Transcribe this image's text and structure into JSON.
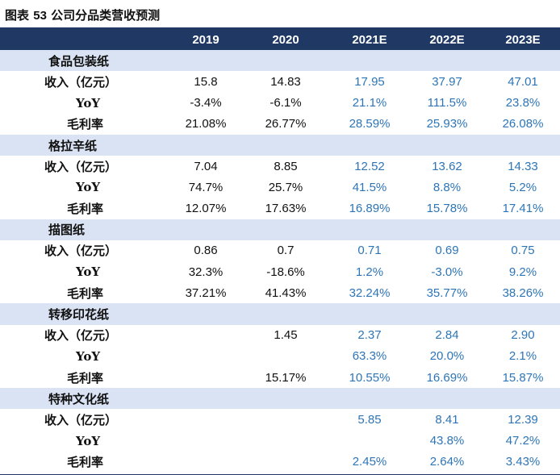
{
  "title": {
    "prefix": "图表",
    "number": "53",
    "text": "公司分品类营收预测"
  },
  "header": {
    "years": [
      "2019",
      "2020",
      "2021E",
      "2022E",
      "2023E"
    ]
  },
  "sections": [
    {
      "name": "食品包装纸",
      "rows": [
        {
          "label": "收入（亿元）",
          "values": [
            "15.8",
            "14.83",
            "17.95",
            "37.97",
            "47.01"
          ]
        },
        {
          "label": "YoY",
          "values": [
            "-3.4%",
            "-6.1%",
            "21.1%",
            "111.5%",
            "23.8%"
          ]
        },
        {
          "label": "毛利率",
          "values": [
            "21.08%",
            "26.77%",
            "28.59%",
            "25.93%",
            "26.08%"
          ]
        }
      ]
    },
    {
      "name": "格拉辛纸",
      "rows": [
        {
          "label": "收入（亿元）",
          "values": [
            "7.04",
            "8.85",
            "12.52",
            "13.62",
            "14.33"
          ]
        },
        {
          "label": "YoY",
          "values": [
            "74.7%",
            "25.7%",
            "41.5%",
            "8.8%",
            "5.2%"
          ]
        },
        {
          "label": "毛利率",
          "values": [
            "12.07%",
            "17.63%",
            "16.89%",
            "15.78%",
            "17.41%"
          ]
        }
      ]
    },
    {
      "name": "描图纸",
      "rows": [
        {
          "label": "收入（亿元）",
          "values": [
            "0.86",
            "0.7",
            "0.71",
            "0.69",
            "0.75"
          ]
        },
        {
          "label": "YoY",
          "values": [
            "32.3%",
            "-18.6%",
            "1.2%",
            "-3.0%",
            "9.2%"
          ]
        },
        {
          "label": "毛利率",
          "values": [
            "37.21%",
            "41.43%",
            "32.24%",
            "35.77%",
            "38.26%"
          ]
        }
      ]
    },
    {
      "name": "转移印花纸",
      "rows": [
        {
          "label": "收入（亿元）",
          "values": [
            "",
            "1.45",
            "2.37",
            "2.84",
            "2.90"
          ]
        },
        {
          "label": "YoY",
          "values": [
            "",
            "",
            "63.3%",
            "20.0%",
            "2.1%"
          ]
        },
        {
          "label": "毛利率",
          "values": [
            "",
            "15.17%",
            "10.55%",
            "16.69%",
            "15.87%"
          ]
        }
      ]
    },
    {
      "name": "特种文化纸",
      "rows": [
        {
          "label": "收入（亿元）",
          "values": [
            "",
            "",
            "5.85",
            "8.41",
            "12.39"
          ]
        },
        {
          "label": "YoY",
          "values": [
            "",
            "",
            "",
            "43.8%",
            "47.2%"
          ]
        },
        {
          "label": "毛利率",
          "values": [
            "",
            "",
            "2.45%",
            "2.64%",
            "3.43%"
          ]
        }
      ]
    }
  ],
  "colors": {
    "header_bg": "#1f3864",
    "section_bg": "#dae3f3",
    "estimate_text": "#2e75b6",
    "actual_text": "#111111"
  }
}
